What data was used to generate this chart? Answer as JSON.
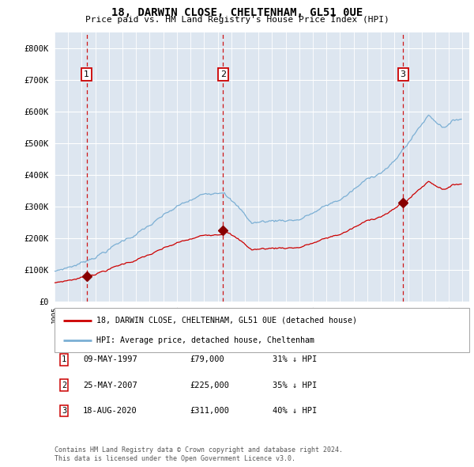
{
  "title": "18, DARWIN CLOSE, CHELTENHAM, GL51 0UE",
  "subtitle": "Price paid vs. HM Land Registry's House Price Index (HPI)",
  "ylim": [
    0,
    850000
  ],
  "yticks": [
    0,
    100000,
    200000,
    300000,
    400000,
    500000,
    600000,
    700000,
    800000
  ],
  "ytick_labels": [
    "£0",
    "£100K",
    "£200K",
    "£300K",
    "£400K",
    "£500K",
    "£600K",
    "£700K",
    "£800K"
  ],
  "xlim_start": 1995.0,
  "xlim_end": 2025.5,
  "plot_bg_color": "#dde6f0",
  "grid_color": "#ffffff",
  "red_line_color": "#cc0000",
  "blue_line_color": "#7bafd4",
  "marker_color": "#880000",
  "dashed_line_color": "#cc0000",
  "transactions": [
    {
      "num": 1,
      "date": "09-MAY-1997",
      "price": "£79,000",
      "hpi": "31% ↓ HPI",
      "year": 1997.36,
      "price_val": 79000
    },
    {
      "num": 2,
      "date": "25-MAY-2007",
      "price": "£225,000",
      "hpi": "35% ↓ HPI",
      "year": 2007.4,
      "price_val": 225000
    },
    {
      "num": 3,
      "date": "18-AUG-2020",
      "price": "£311,000",
      "hpi": "40% ↓ HPI",
      "year": 2020.63,
      "price_val": 311000
    }
  ],
  "legend_label_red": "18, DARWIN CLOSE, CHELTENHAM, GL51 0UE (detached house)",
  "legend_label_blue": "HPI: Average price, detached house, Cheltenham",
  "footer1": "Contains HM Land Registry data © Crown copyright and database right 2024.",
  "footer2": "This data is licensed under the Open Government Licence v3.0."
}
